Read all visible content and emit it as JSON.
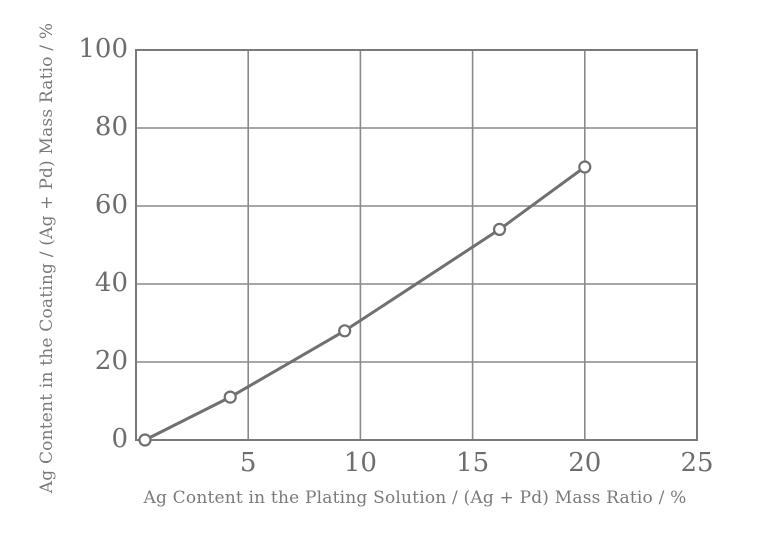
{
  "chart_data": {
    "type": "line",
    "title": "",
    "xlabel": "Ag Content in the Plating Solution / (Ag + Pd) Mass Ratio / %",
    "ylabel": "Ag Content in the Coating / (Ag + Pd) Mass Ratio / %",
    "xlim": [
      0,
      25
    ],
    "ylim": [
      0,
      100
    ],
    "x_ticks": [
      "5",
      "10",
      "15",
      "20",
      "25"
    ],
    "y_ticks": [
      "0",
      "20",
      "40",
      "60",
      "80",
      "100"
    ],
    "grid": true,
    "legend": null,
    "series": [
      {
        "name": "Ag content in coating",
        "marker": "open-circle",
        "color": "#707070",
        "points": [
          {
            "x": 0.4,
            "y": 0
          },
          {
            "x": 4.2,
            "y": 11
          },
          {
            "x": 9.3,
            "y": 28
          },
          {
            "x": 16.2,
            "y": 54
          },
          {
            "x": 20.0,
            "y": 70
          }
        ]
      }
    ]
  },
  "colors": {
    "axis": "#7a7a7a",
    "grid": "#8a8a8a",
    "line": "#707070",
    "text": "#6d6d6d"
  }
}
